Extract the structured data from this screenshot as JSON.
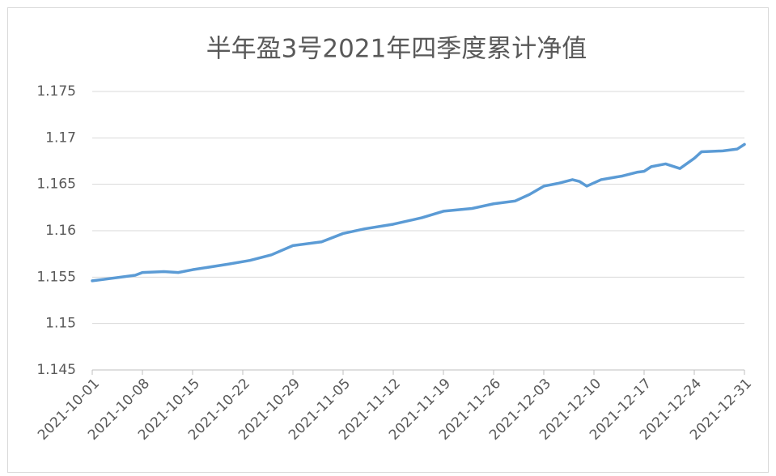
{
  "chart_data": {
    "type": "line",
    "title": "半年盈3号2021年四季度累计净值",
    "x": [
      "2021-10-01",
      "2021-10-07",
      "2021-10-08",
      "2021-10-11",
      "2021-10-13",
      "2021-10-15",
      "2021-10-20",
      "2021-10-23",
      "2021-10-26",
      "2021-10-29",
      "2021-11-02",
      "2021-11-05",
      "2021-11-08",
      "2021-11-12",
      "2021-11-16",
      "2021-11-19",
      "2021-11-23",
      "2021-11-26",
      "2021-11-29",
      "2021-12-01",
      "2021-12-03",
      "2021-12-05",
      "2021-12-07",
      "2021-12-08",
      "2021-12-09",
      "2021-12-11",
      "2021-12-14",
      "2021-12-16",
      "2021-12-17",
      "2021-12-18",
      "2021-12-20",
      "2021-12-22",
      "2021-12-24",
      "2021-12-25",
      "2021-12-28",
      "2021-12-30",
      "2021-12-31"
    ],
    "series": [
      {
        "name": "累计净值",
        "color": "#5b9bd5",
        "values": [
          1.1546,
          1.1552,
          1.1555,
          1.1556,
          1.1555,
          1.1558,
          1.1564,
          1.1568,
          1.1574,
          1.1584,
          1.1588,
          1.1597,
          1.1602,
          1.1607,
          1.1614,
          1.1621,
          1.1624,
          1.1629,
          1.1632,
          1.1639,
          1.1648,
          1.1651,
          1.1655,
          1.1653,
          1.1648,
          1.1655,
          1.1659,
          1.1663,
          1.1664,
          1.1669,
          1.1672,
          1.1667,
          1.1678,
          1.1685,
          1.1686,
          1.1688,
          1.1693
        ]
      }
    ],
    "xlim": [
      "2021-10-01",
      "2021-12-31"
    ],
    "xticks": [
      "2021-10-01",
      "2021-10-08",
      "2021-10-15",
      "2021-10-22",
      "2021-10-29",
      "2021-11-05",
      "2021-11-12",
      "2021-11-19",
      "2021-11-26",
      "2021-12-03",
      "2021-12-10",
      "2021-12-17",
      "2021-12-24",
      "2021-12-31"
    ],
    "ylim": [
      1.145,
      1.175
    ],
    "yticks": [
      1.145,
      1.15,
      1.155,
      1.16,
      1.165,
      1.17,
      1.175
    ],
    "grid": true
  }
}
